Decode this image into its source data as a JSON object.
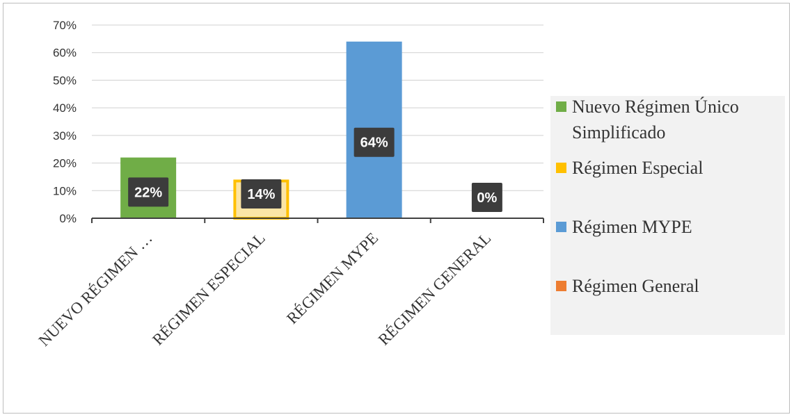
{
  "chart_data": {
    "type": "bar",
    "categories": [
      "NUEVO RÉGIMEN …",
      "RÉGIMEN ESPECIAL",
      "RÉGIMEN MYPE",
      "RÉGIMEN GENERAL"
    ],
    "values": [
      22,
      14,
      64,
      0
    ],
    "data_labels": [
      "22%",
      "14%",
      "64%",
      "0%"
    ],
    "bar_colors": [
      "#70ad47",
      "#ffc000",
      "#5b9bd5",
      "#ed7d31"
    ],
    "ylim": [
      0,
      70
    ],
    "yticks": [
      0,
      10,
      20,
      30,
      40,
      50,
      60,
      70
    ],
    "ytick_labels": [
      "0%",
      "10%",
      "20%",
      "30%",
      "40%",
      "50%",
      "60%",
      "70%"
    ],
    "grid": true,
    "legend_position": "right",
    "legend": [
      {
        "line1": "Nuevo Régimen Único",
        "line2": "Simplificado",
        "color": "#70ad47"
      },
      {
        "line1": "Régimen Especial",
        "line2": "",
        "color": "#ffc000"
      },
      {
        "line1": "Régimen MYPE",
        "line2": "",
        "color": "#5b9bd5"
      },
      {
        "line1": "Régimen General",
        "line2": "",
        "color": "#ed7d31"
      }
    ],
    "title": "",
    "xlabel": "",
    "ylabel": ""
  }
}
